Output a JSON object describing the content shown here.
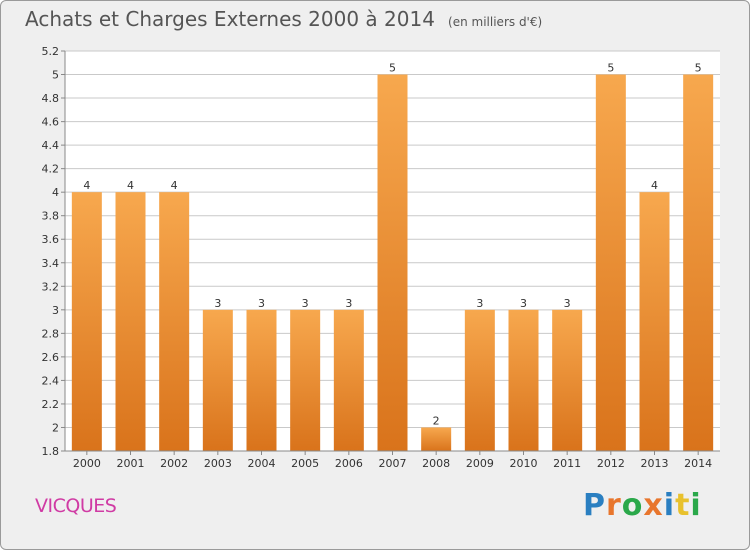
{
  "header": {
    "title": "Achats et Charges Externes 2000 à 2014",
    "unit": "(en milliers d'€)"
  },
  "footer": {
    "place": "VICQUES",
    "brand": "Proxiti",
    "brand_letters": [
      "P",
      "r",
      "o",
      "x",
      "i",
      "t",
      "i"
    ],
    "brand_colors": [
      "#2a7fc1",
      "#e8762d",
      "#2aa84a",
      "#e8762d",
      "#2a7fc1",
      "#e8c12d",
      "#2aa84a"
    ]
  },
  "chart_data": {
    "type": "bar",
    "categories": [
      "2000",
      "2001",
      "2002",
      "2003",
      "2004",
      "2005",
      "2006",
      "2007",
      "2008",
      "2009",
      "2010",
      "2011",
      "2012",
      "2013",
      "2014"
    ],
    "values": [
      4,
      4,
      4,
      3,
      3,
      3,
      3,
      5,
      2,
      3,
      3,
      3,
      5,
      4,
      5
    ],
    "data_labels": [
      "4",
      "4",
      "4",
      "3",
      "3",
      "3",
      "3",
      "5",
      "2",
      "3",
      "3",
      "3",
      "5",
      "4",
      "5"
    ],
    "ylim": [
      1.8,
      5.2
    ],
    "yticks": [
      1.8,
      2,
      2.2,
      2.4,
      2.6,
      2.8,
      3,
      3.2,
      3.4,
      3.6,
      3.8,
      4,
      4.2,
      4.4,
      4.6,
      4.8,
      5,
      5.2
    ],
    "ytick_labels": [
      "1.8",
      "2",
      "2.2",
      "2.4",
      "2.6",
      "2.8",
      "3",
      "3.2",
      "3.4",
      "3.6",
      "3.8",
      "4",
      "4.2",
      "4.4",
      "4.6",
      "4.8",
      "5",
      "5.2"
    ],
    "grid": true,
    "colors": {
      "bar_top": "#f7a84e",
      "bar_bottom": "#d9731b",
      "grid": "#c9c9c9",
      "plot_bg": "#ffffff",
      "axis": "#888888"
    }
  }
}
